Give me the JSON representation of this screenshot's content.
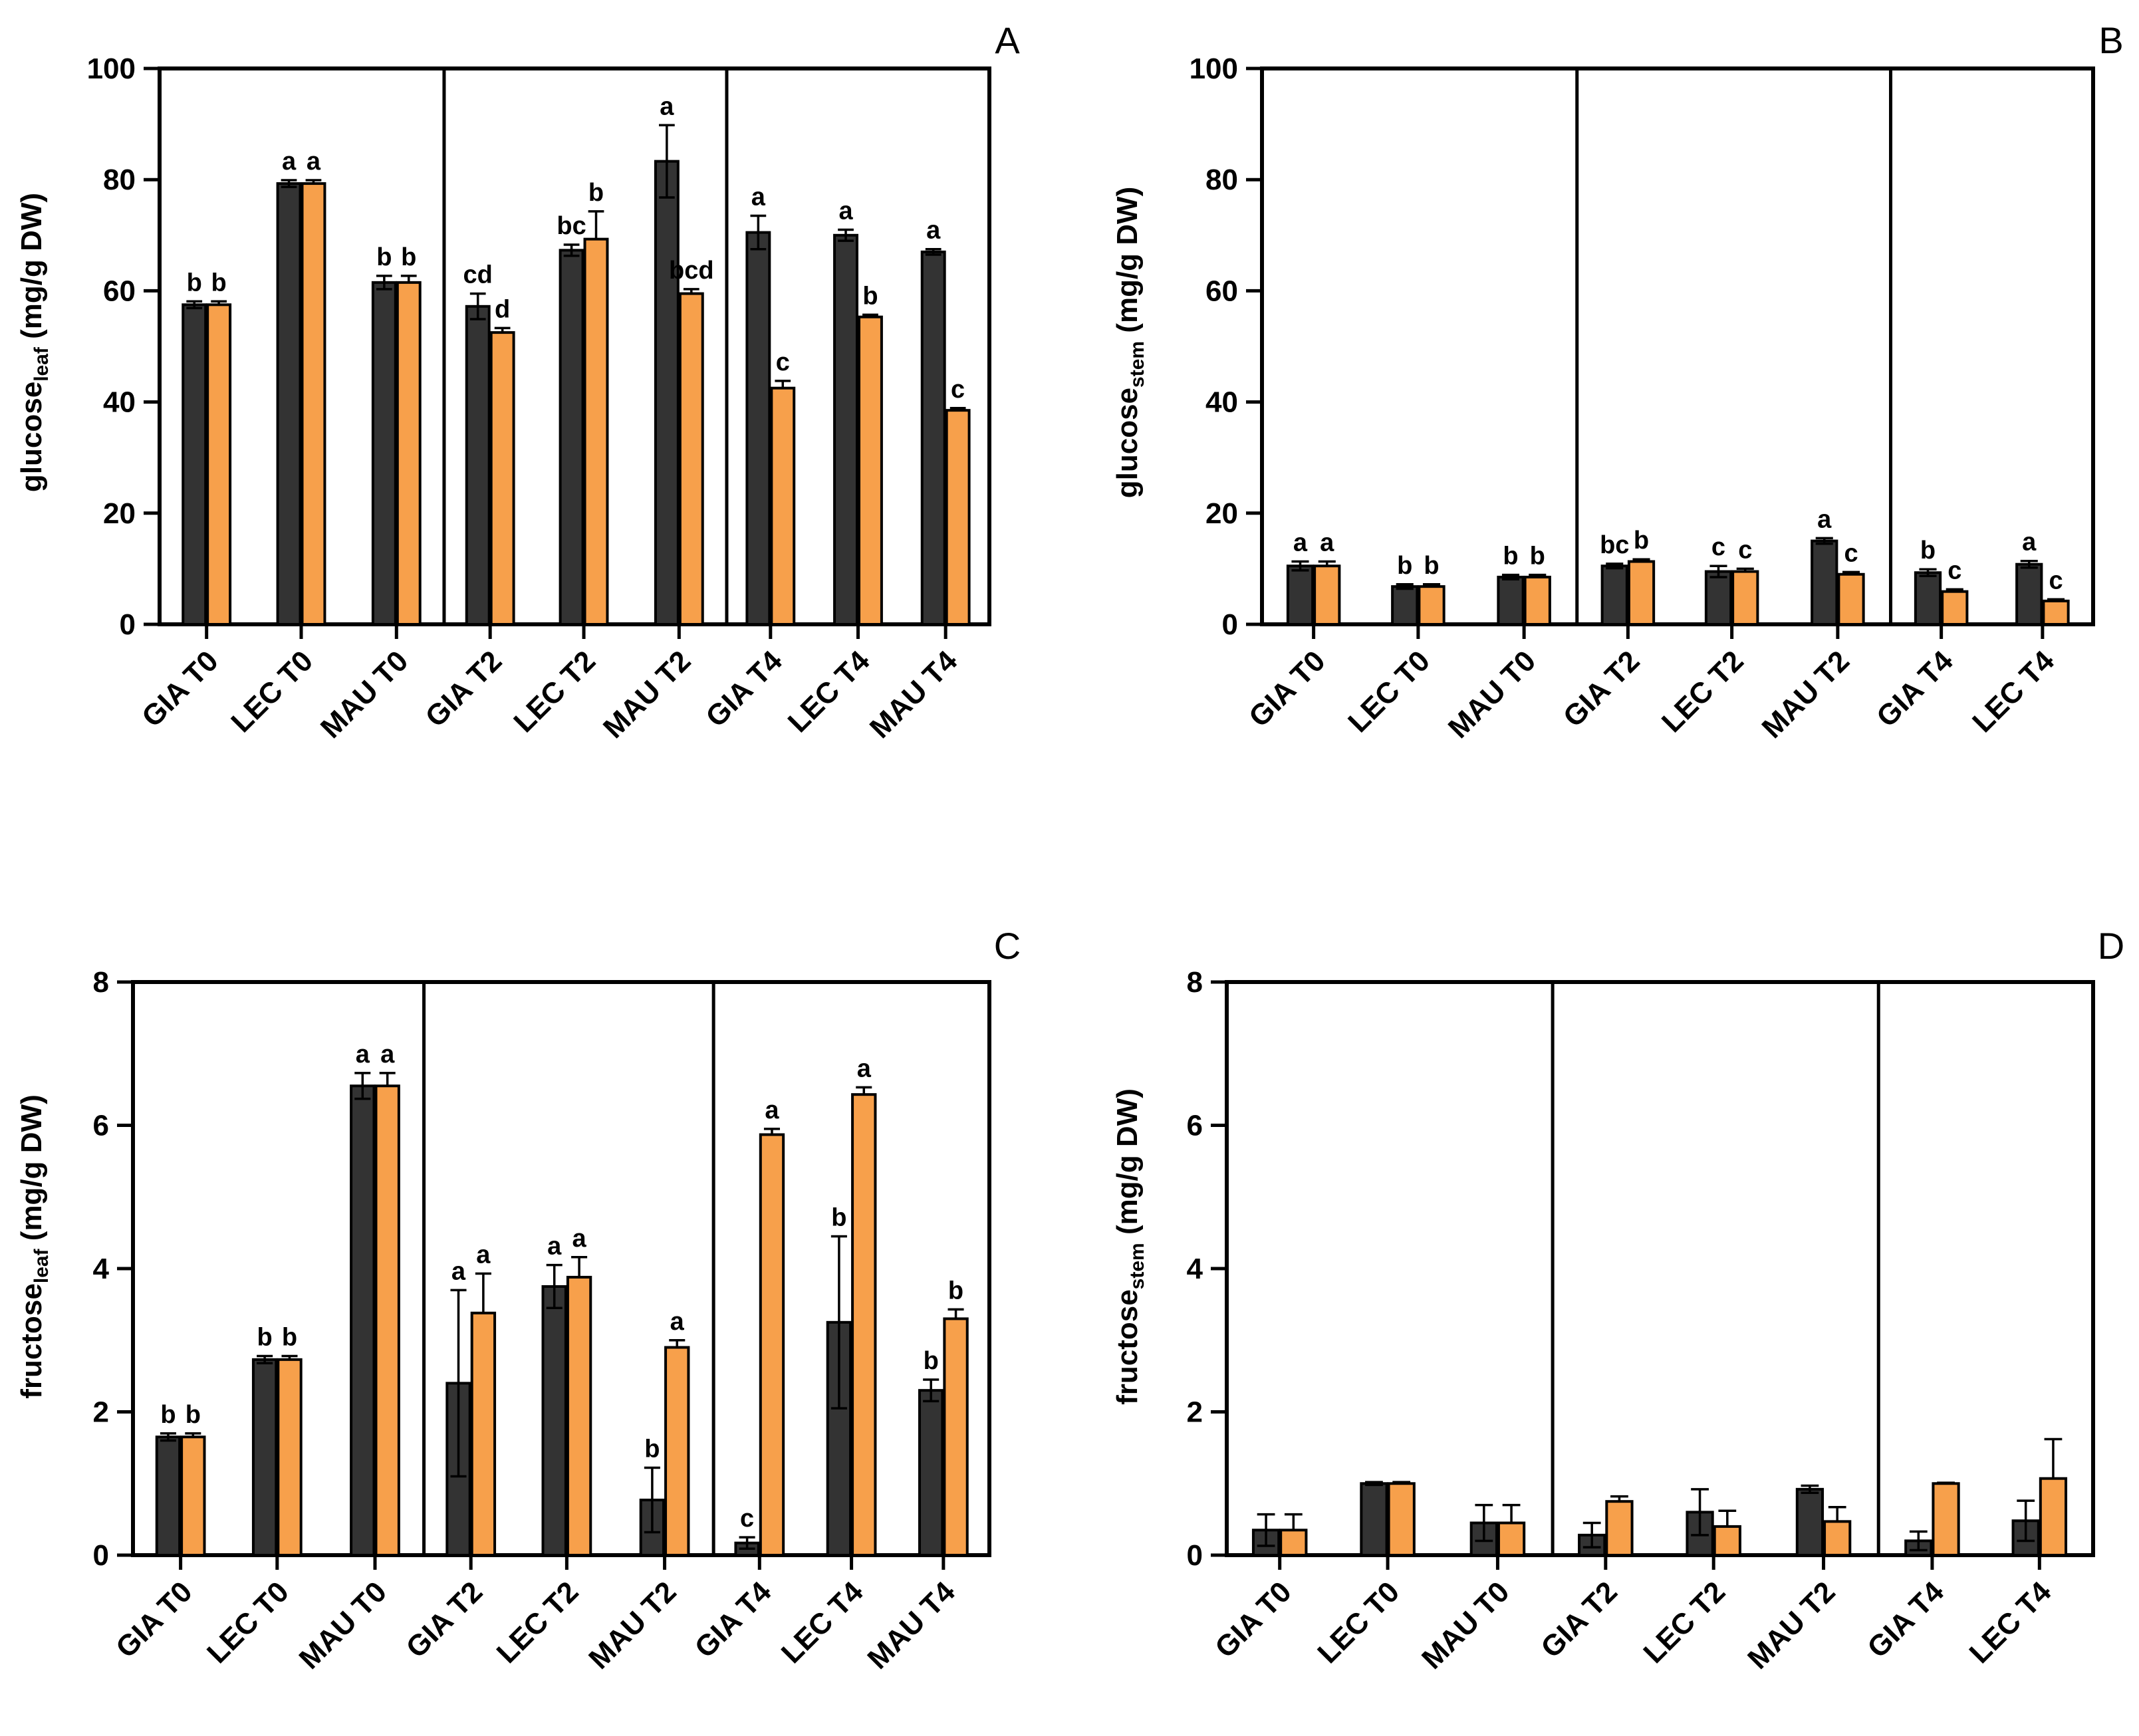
{
  "colors": {
    "series1": "#333333",
    "series2": "#f7a04b",
    "axis": "#000000"
  },
  "chart_data": [
    {
      "type": "bar",
      "panel": "A",
      "ylabel_main": "glucose",
      "ylabel_sub": "leaf",
      "ylabel_unit": " (mg/g DW)",
      "ylim": [
        0,
        100
      ],
      "yticks": [
        0,
        20,
        40,
        60,
        80,
        100
      ],
      "ytick_labels": [
        "0",
        "20",
        "40",
        "60",
        "80",
        "100"
      ],
      "categories": [
        "GIA T0",
        "LEC T0",
        "MAU T0",
        "GIA T2",
        "LEC T2",
        "MAU T2",
        "GIA T4",
        "LEC T4",
        "MAU T4"
      ],
      "group_dividers_after": [
        2,
        5
      ],
      "series": [
        {
          "values": [
            57.5,
            79.3,
            61.5,
            57.2,
            67.3,
            83.3,
            70.5,
            70.0,
            67.0
          ],
          "errors": [
            0.6,
            0.6,
            1.2,
            2.3,
            1.0,
            6.5,
            3.0,
            1.0,
            0.5
          ],
          "labels": [
            "b",
            "a",
            "b",
            "cd",
            "bc",
            "a",
            "a",
            "a",
            "a"
          ]
        },
        {
          "values": [
            57.5,
            79.3,
            61.5,
            52.5,
            69.3,
            59.5,
            42.5,
            55.3,
            38.5
          ],
          "errors": [
            0.6,
            0.6,
            1.2,
            0.8,
            5.0,
            0.8,
            1.3,
            0.4,
            0.4
          ],
          "labels": [
            "b",
            "a",
            "b",
            "d",
            "b",
            "bcd",
            "c",
            "b",
            "c"
          ]
        }
      ]
    },
    {
      "type": "bar",
      "panel": "B",
      "ylabel_main": "glucose",
      "ylabel_sub": "stem",
      "ylabel_unit": " (mg/g DW)",
      "ylim": [
        0,
        100
      ],
      "yticks": [
        0,
        20,
        40,
        60,
        80,
        100
      ],
      "ytick_labels": [
        "0",
        "20",
        "40",
        "60",
        "80",
        "100"
      ],
      "categories": [
        "GIA T0",
        "LEC T0",
        "MAU T0",
        "GIA T2",
        "LEC T2",
        "MAU T2",
        "GIA T4",
        "LEC T4"
      ],
      "group_dividers_after": [
        2,
        5
      ],
      "series": [
        {
          "values": [
            10.5,
            6.8,
            8.5,
            10.5,
            9.5,
            15.0,
            9.3,
            10.8
          ],
          "errors": [
            0.8,
            0.4,
            0.4,
            0.4,
            1.0,
            0.5,
            0.6,
            0.6
          ],
          "labels": [
            "a",
            "b",
            "b",
            "bc",
            "c",
            "a",
            "b",
            "a"
          ]
        },
        {
          "values": [
            10.5,
            6.8,
            8.5,
            11.3,
            9.5,
            9.0,
            5.9,
            4.2
          ],
          "errors": [
            0.8,
            0.4,
            0.4,
            0.4,
            0.5,
            0.4,
            0.4,
            0.3
          ],
          "labels": [
            "a",
            "b",
            "b",
            "b",
            "c",
            "c",
            "c",
            "c"
          ]
        }
      ]
    },
    {
      "type": "bar",
      "panel": "C",
      "ylabel_main": "fructose",
      "ylabel_sub": "leaf",
      "ylabel_unit": " (mg/g DW)",
      "ylim": [
        0,
        8
      ],
      "yticks": [
        0,
        2,
        4,
        6,
        8
      ],
      "ytick_labels": [
        "0",
        "2",
        "4",
        "6",
        "8"
      ],
      "categories": [
        "GIA T0",
        "LEC T0",
        "MAU T0",
        "GIA T2",
        "LEC T2",
        "MAU T2",
        "GIA T4",
        "LEC T4",
        "MAU T4"
      ],
      "group_dividers_after": [
        2,
        5
      ],
      "series": [
        {
          "values": [
            1.65,
            2.73,
            6.55,
            2.4,
            3.75,
            0.77,
            0.17,
            3.25,
            2.3
          ],
          "errors": [
            0.05,
            0.05,
            0.18,
            1.3,
            0.3,
            0.45,
            0.08,
            1.2,
            0.15
          ],
          "labels": [
            "b",
            "b",
            "a",
            "a",
            "a",
            "b",
            "c",
            "b",
            "b"
          ]
        },
        {
          "values": [
            1.65,
            2.73,
            6.55,
            3.38,
            3.88,
            2.9,
            5.87,
            6.43,
            3.3
          ],
          "errors": [
            0.05,
            0.05,
            0.18,
            0.55,
            0.28,
            0.1,
            0.08,
            0.1,
            0.13
          ],
          "labels": [
            "b",
            "b",
            "a",
            "a",
            "a",
            "a",
            "a",
            "a",
            "b"
          ]
        }
      ]
    },
    {
      "type": "bar",
      "panel": "D",
      "ylabel_main": "fructose",
      "ylabel_sub": "stem",
      "ylabel_unit": " (mg/g DW)",
      "ylim": [
        0,
        8
      ],
      "yticks": [
        0,
        2,
        4,
        6,
        8
      ],
      "ytick_labels": [
        "0",
        "2",
        "4",
        "6",
        "8"
      ],
      "categories": [
        "GIA T0",
        "LEC T0",
        "MAU T0",
        "GIA T2",
        "LEC T2",
        "MAU T2",
        "GIA T4",
        "LEC T4"
      ],
      "group_dividers_after": [
        2,
        5
      ],
      "series": [
        {
          "values": [
            0.35,
            1.0,
            0.45,
            0.28,
            0.6,
            0.92,
            0.2,
            0.48
          ],
          "errors": [
            0.22,
            0.02,
            0.25,
            0.17,
            0.32,
            0.05,
            0.13,
            0.28
          ],
          "labels": [
            "",
            "",
            "",
            "",
            "",
            "",
            "",
            ""
          ]
        },
        {
          "values": [
            0.35,
            1.0,
            0.45,
            0.75,
            0.4,
            0.47,
            1.0,
            1.07
          ],
          "errors": [
            0.22,
            0.02,
            0.25,
            0.07,
            0.22,
            0.2,
            0.01,
            0.55
          ],
          "labels": [
            "",
            "",
            "",
            "",
            "",
            "",
            "",
            ""
          ]
        }
      ]
    }
  ]
}
